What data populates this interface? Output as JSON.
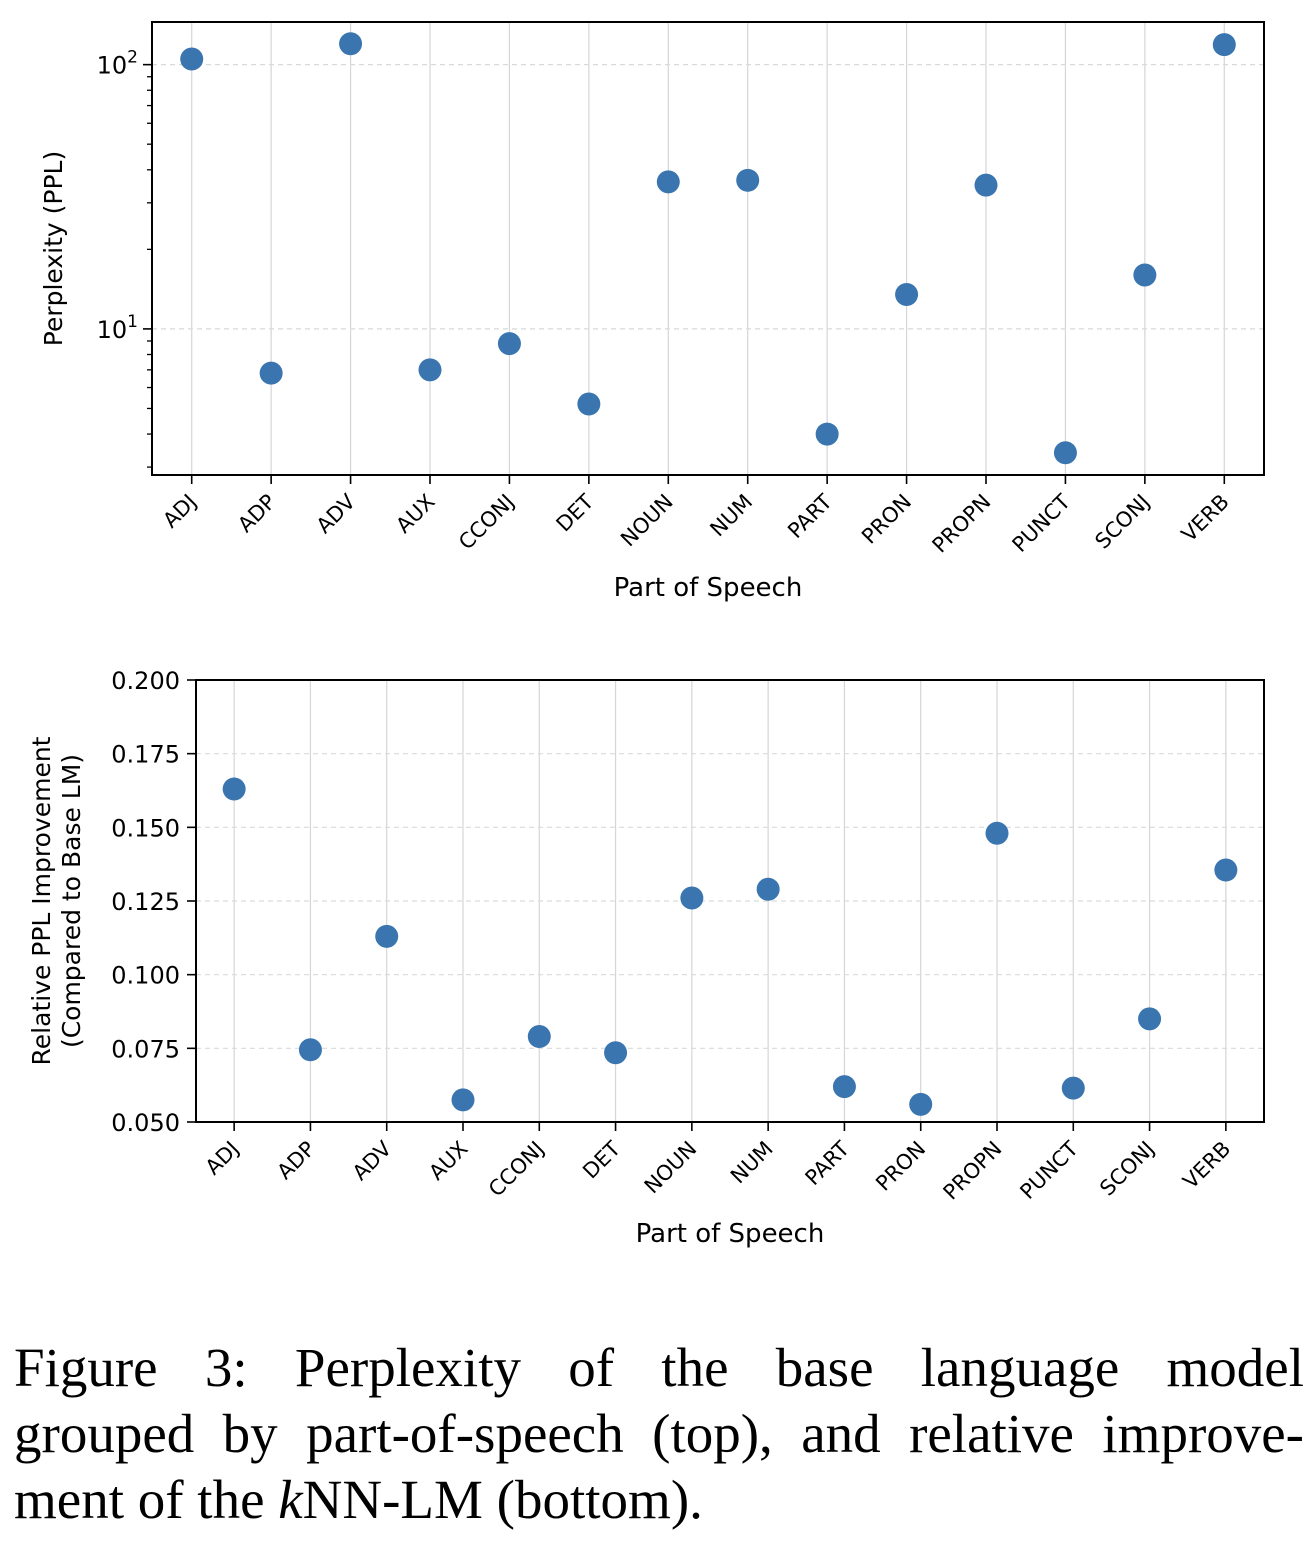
{
  "chart_data": [
    {
      "type": "scatter",
      "categories": [
        "ADJ",
        "ADP",
        "ADV",
        "AUX",
        "CCONJ",
        "DET",
        "NOUN",
        "NUM",
        "PART",
        "PRON",
        "PROPN",
        "PUNCT",
        "SCONJ",
        "VERB"
      ],
      "values": [
        105,
        6.8,
        120,
        7.0,
        8.8,
        5.2,
        36,
        36.5,
        4.0,
        13.5,
        35,
        3.4,
        16,
        119
      ],
      "xlabel": "Part of Speech",
      "ylabel": "Perplexity (PPL)",
      "yscale": "log",
      "ylim": [
        2.8,
        145
      ],
      "yticks": [
        {
          "value": 10,
          "base": "10",
          "exp": "1"
        },
        {
          "value": 100,
          "base": "10",
          "exp": "2"
        }
      ],
      "grid": true,
      "color": "#3a75b0"
    },
    {
      "type": "scatter",
      "categories": [
        "ADJ",
        "ADP",
        "ADV",
        "AUX",
        "CCONJ",
        "DET",
        "NOUN",
        "NUM",
        "PART",
        "PRON",
        "PROPN",
        "PUNCT",
        "SCONJ",
        "VERB"
      ],
      "values": [
        0.163,
        0.0745,
        0.113,
        0.0575,
        0.079,
        0.0735,
        0.126,
        0.129,
        0.062,
        0.056,
        0.148,
        0.0615,
        0.085,
        0.1355
      ],
      "xlabel": "Part of Speech",
      "ylabel": [
        "Relative PPL Improvement",
        "(Compared to Base LM)"
      ],
      "ylim": [
        0.05,
        0.2
      ],
      "yticks": [
        "0.050",
        "0.075",
        "0.100",
        "0.125",
        "0.150",
        "0.175",
        "0.200"
      ],
      "grid": true,
      "color": "#3a75b0"
    }
  ],
  "caption": {
    "line1": "Figure 3:  Perplexity of the base language model",
    "line2": "grouped by part-of-speech (top), and relative improve-",
    "line3_prefix": "ment of the ",
    "line3_italic": "k",
    "line3_suffix": "NN-LM (bottom)."
  }
}
